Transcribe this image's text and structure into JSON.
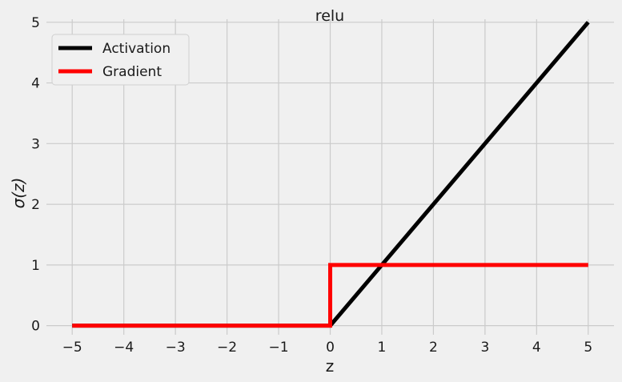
{
  "chart_data": {
    "type": "line",
    "title": "relu",
    "xlabel": "z",
    "ylabel": "σ(z)",
    "xlim": [
      -5.5,
      5.5
    ],
    "ylim": [
      -0.15,
      5.05
    ],
    "xticks": [
      -5,
      -4,
      -3,
      -2,
      -1,
      0,
      1,
      2,
      3,
      4,
      5
    ],
    "yticks": [
      0,
      1,
      2,
      3,
      4,
      5
    ],
    "xtick_labels": [
      "−5",
      "−4",
      "−3",
      "−2",
      "−1",
      "0",
      "1",
      "2",
      "3",
      "4",
      "5"
    ],
    "ytick_labels": [
      "0",
      "1",
      "2",
      "3",
      "4",
      "5"
    ],
    "grid": true,
    "legend_position": "top-left",
    "series": [
      {
        "name": "Activation",
        "color": "#000000",
        "x": [
          -5,
          0,
          5
        ],
        "y": [
          0,
          0,
          5
        ]
      },
      {
        "name": "Gradient",
        "color": "#ff0000",
        "x": [
          -5,
          0,
          0,
          5
        ],
        "y": [
          0,
          0,
          1,
          1
        ]
      }
    ]
  }
}
